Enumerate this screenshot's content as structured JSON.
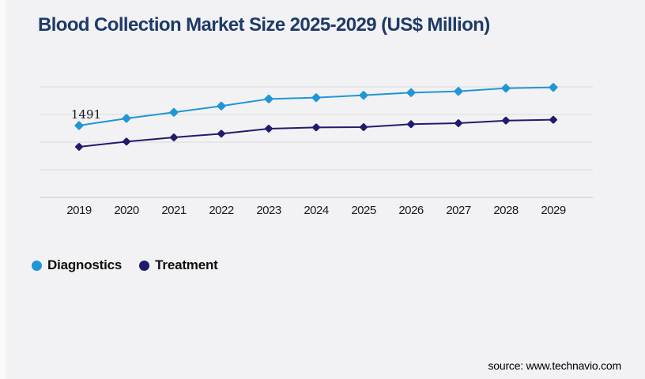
{
  "page": {
    "background": "#f2f2f4",
    "title": "Blood Collection Market Size 2025-2029 (US$ Million)",
    "title_color": "#1e3a68",
    "source": "source: www.technavio.com"
  },
  "chart_data": {
    "type": "line",
    "title": "Blood Collection Market Size 2025-2029 (US$ Million)",
    "categories": [
      "2019",
      "2020",
      "2021",
      "2022",
      "2023",
      "2024",
      "2025",
      "2026",
      "2027",
      "2028",
      "2029"
    ],
    "series": [
      {
        "name": "Diagnostics",
        "color": "#2196d6",
        "marker": "diamond",
        "values": [
          1491,
          1639,
          1765,
          1896,
          2043,
          2070,
          2119,
          2174,
          2201,
          2266,
          2283
        ]
      },
      {
        "name": "Treatment",
        "color": "#211b6e",
        "marker": "diamond",
        "values": [
          1049,
          1158,
          1245,
          1322,
          1426,
          1453,
          1458,
          1519,
          1540,
          1594,
          1611
        ]
      }
    ],
    "data_label": {
      "series": "Diagnostics",
      "category": "2019",
      "text": "1491"
    },
    "xlabel": "",
    "ylabel": "",
    "ylim": [
      0,
      2294
    ],
    "grid": "horizontal-only",
    "gridline_count": 5,
    "grid_color": "#dadadc",
    "axis_color": "#c6c6c8",
    "tick_label_color": "#1a1a1a",
    "legend_position": "bottom-left"
  },
  "legend": {
    "items": [
      {
        "label": "Diagnostics",
        "color": "#2196d6"
      },
      {
        "label": "Treatment",
        "color": "#211b6e"
      }
    ]
  }
}
